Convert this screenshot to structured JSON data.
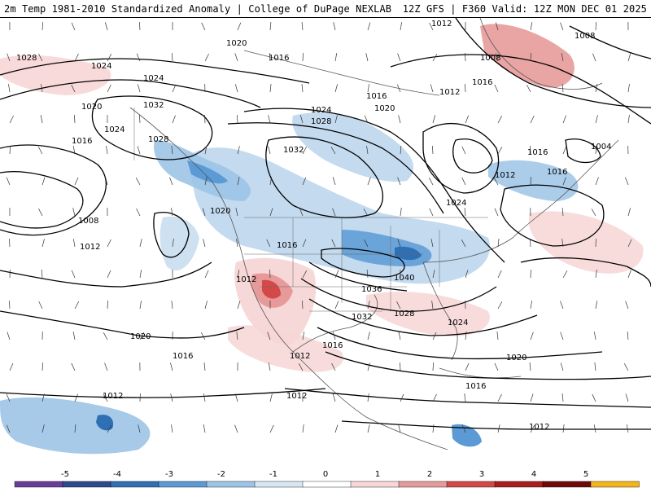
{
  "header": {
    "title": "2m Temp 1981-2010 Standardized Anomaly | College of DuPage NEXLAB",
    "run_info": "12Z GFS | F360 Valid: 12Z MON DEC 01 2025"
  },
  "isobar_labels": [
    "1028",
    "1024",
    "1024",
    "1020",
    "1020",
    "1016",
    "1016",
    "1012",
    "1012",
    "1008",
    "1008",
    "1032",
    "1028",
    "1024",
    "1028",
    "1032",
    "1020",
    "1024",
    "1016",
    "1012",
    "1020",
    "1016",
    "1012",
    "1004",
    "1016",
    "1016",
    "1024",
    "1016",
    "1012",
    "1040",
    "1036",
    "1032",
    "1028",
    "1024",
    "1020",
    "1016",
    "1012",
    "1012",
    "1020",
    "1016",
    "1012",
    "1016",
    "1012",
    "1008"
  ],
  "legend": {
    "tick_labels": [
      "-5",
      "-4",
      "-3",
      "-2",
      "-1",
      "0",
      "1",
      "2",
      "3",
      "4",
      "5"
    ],
    "colors": [
      "#6a3d9a",
      "#2c4b8e",
      "#2f6fb4",
      "#5b9ad5",
      "#9cc4e6",
      "#d6e6f4",
      "#ffffff",
      "#f7d6d6",
      "#e79a9a",
      "#d34848",
      "#a81e1e",
      "#6e0a0a",
      "#f2b51a"
    ]
  }
}
